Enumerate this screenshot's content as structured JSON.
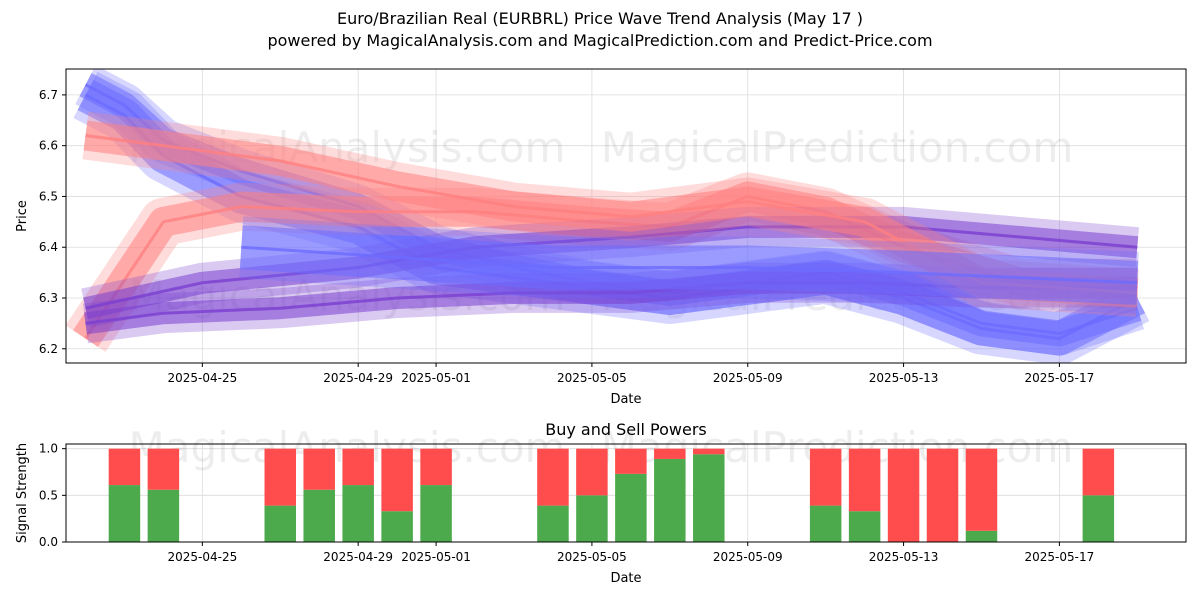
{
  "title": "Euro/Brazilian Real (EURBRL) Price Wave Trend Analysis (May 17 )",
  "subtitle": "powered by MagicalAnalysis.com and MagicalPrediction.com and Predict-Price.com",
  "watermarks": [
    "MagicalAnalysis.com",
    "MagicalPrediction.com"
  ],
  "colors": {
    "buy": "#4caa4c",
    "sell": "#ff4c4c",
    "band_blue": "#6b6bff",
    "band_red": "#ff8080",
    "band_purple": "#7a3fd0"
  },
  "chart_data": [
    {
      "type": "area",
      "title": "",
      "xlabel": "Date",
      "ylabel": "Price",
      "x_ticks": [
        "2025-04-25",
        "2025-04-29",
        "2025-05-01",
        "2025-05-05",
        "2025-05-09",
        "2025-05-13",
        "2025-05-17"
      ],
      "y_ticks": [
        6.2,
        6.3,
        6.4,
        6.5,
        6.6,
        6.7
      ],
      "xlim": [
        "2025-04-21 12:00",
        "2025-05-20 06:00"
      ],
      "ylim": [
        6.172,
        6.751
      ],
      "grid": true,
      "series": [
        {
          "x": [
            "2025-04-22",
            "2025-04-23",
            "2025-04-24",
            "2025-04-26",
            "2025-04-29",
            "2025-05-01",
            "2025-05-03",
            "2025-05-05",
            "2025-05-07",
            "2025-05-09",
            "2025-05-11",
            "2025-05-13",
            "2025-05-15",
            "2025-05-17",
            "2025-05-19"
          ],
          "y": [
            6.7,
            6.66,
            6.58,
            6.5,
            6.44,
            6.36,
            6.34,
            6.32,
            6.3,
            6.32,
            6.34,
            6.3,
            6.24,
            6.22,
            6.3
          ]
        },
        {
          "x": [
            "2025-04-22",
            "2025-04-23",
            "2025-04-24",
            "2025-04-26",
            "2025-04-29",
            "2025-05-01",
            "2025-05-03",
            "2025-05-05",
            "2025-05-07",
            "2025-05-09",
            "2025-05-11",
            "2025-05-13",
            "2025-05-15",
            "2025-05-17",
            "2025-05-19"
          ],
          "y": [
            6.72,
            6.68,
            6.61,
            6.55,
            6.48,
            6.4,
            6.36,
            6.33,
            6.31,
            6.33,
            6.35,
            6.31,
            6.25,
            6.23,
            6.28
          ]
        },
        {
          "x": [
            "2025-04-22",
            "2025-04-24",
            "2025-04-26",
            "2025-04-29",
            "2025-05-02",
            "2025-05-05",
            "2025-05-07",
            "2025-05-09",
            "2025-05-11",
            "2025-05-13",
            "2025-05-16",
            "2025-05-19"
          ],
          "y": [
            6.22,
            6.45,
            6.48,
            6.47,
            6.47,
            6.45,
            6.44,
            6.5,
            6.47,
            6.4,
            6.33,
            6.33
          ]
        },
        {
          "x": [
            "2025-04-22",
            "2025-04-24",
            "2025-04-27",
            "2025-04-30",
            "2025-05-03",
            "2025-05-06",
            "2025-05-09",
            "2025-05-12",
            "2025-05-15",
            "2025-05-19"
          ],
          "y": [
            6.25,
            6.27,
            6.28,
            6.3,
            6.31,
            6.31,
            6.33,
            6.33,
            6.32,
            6.32
          ]
        },
        {
          "x": [
            "2025-04-22",
            "2025-04-25",
            "2025-04-29",
            "2025-05-02",
            "2025-05-06",
            "2025-05-09",
            "2025-05-13",
            "2025-05-19"
          ],
          "y": [
            6.28,
            6.33,
            6.36,
            6.4,
            6.42,
            6.44,
            6.44,
            6.4
          ]
        },
        {
          "x": [
            "2025-04-22",
            "2025-04-24",
            "2025-04-27",
            "2025-04-30",
            "2025-05-03",
            "2025-05-06",
            "2025-05-09",
            "2025-05-12",
            "2025-05-15",
            "2025-05-19"
          ],
          "y": [
            6.62,
            6.6,
            6.57,
            6.52,
            6.48,
            6.46,
            6.49,
            6.45,
            6.33,
            6.31
          ]
        },
        {
          "x": [
            "2025-04-26",
            "2025-05-04",
            "2025-05-09",
            "2025-05-13",
            "2025-05-19"
          ],
          "y": [
            6.4,
            6.36,
            6.36,
            6.35,
            6.33
          ]
        }
      ]
    },
    {
      "type": "bar",
      "title": "Buy and Sell Powers",
      "xlabel": "Date",
      "ylabel": "Signal Strength",
      "x_ticks": [
        "2025-04-25",
        "2025-04-29",
        "2025-05-01",
        "2025-05-05",
        "2025-05-09",
        "2025-05-13",
        "2025-05-17"
      ],
      "y_ticks": [
        "0.0",
        "0.5",
        "1.0"
      ],
      "ylim": [
        0,
        1.05
      ],
      "grid": true,
      "categories": [
        "2025-04-23",
        "2025-04-24",
        "2025-04-27",
        "2025-04-28",
        "2025-04-29",
        "2025-04-30",
        "2025-05-01",
        "2025-05-04",
        "2025-05-05",
        "2025-05-06",
        "2025-05-07",
        "2025-05-08",
        "2025-05-11",
        "2025-05-12",
        "2025-05-13",
        "2025-05-14",
        "2025-05-15",
        "2025-05-18"
      ],
      "series": [
        {
          "values": [
            0.61,
            0.56,
            0.39,
            0.56,
            0.61,
            0.33,
            0.61,
            0.39,
            0.5,
            0.73,
            0.89,
            0.94,
            0.39,
            0.33,
            0.0,
            0.0,
            0.12,
            0.5
          ]
        },
        {
          "values": [
            0.39,
            0.44,
            0.61,
            0.44,
            0.39,
            0.67,
            0.39,
            0.61,
            0.5,
            0.27,
            0.11,
            0.06,
            0.61,
            0.67,
            1.0,
            1.0,
            0.88,
            0.5
          ]
        }
      ]
    }
  ]
}
